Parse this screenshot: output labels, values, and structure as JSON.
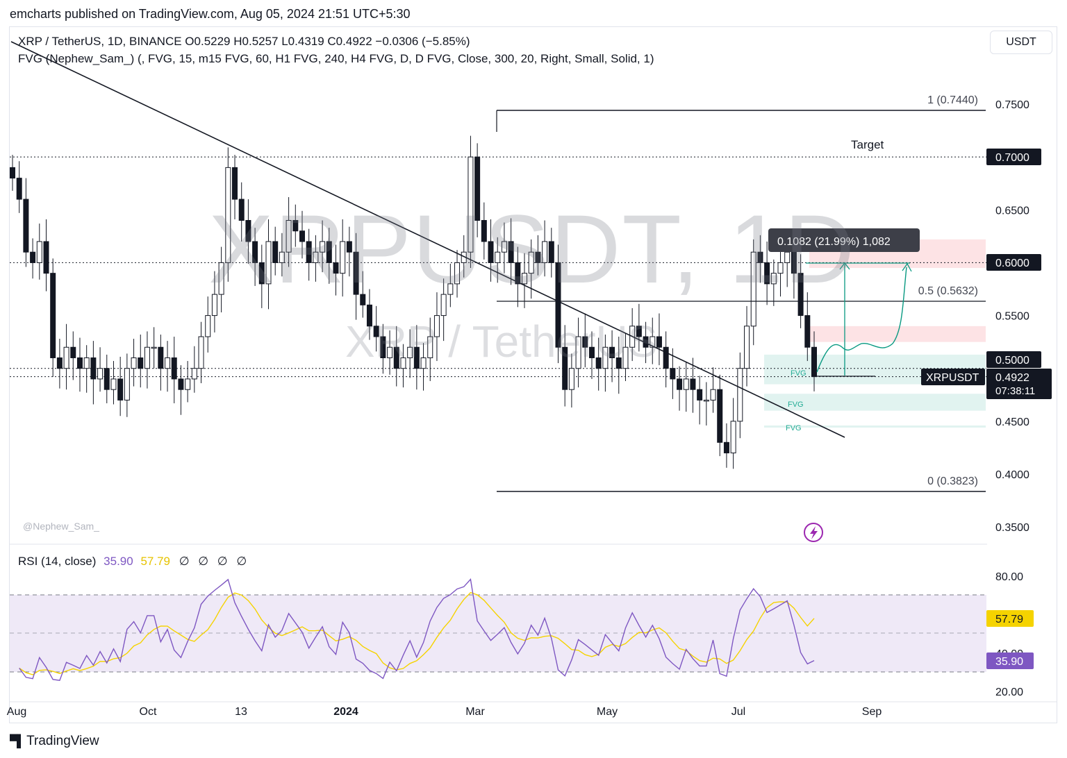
{
  "header": {
    "publisher": "emcharts published on TradingView.com, Aug 05, 2024 21:51 UTC+5:30"
  },
  "legend": {
    "symbol_line": "XRP / TetherUS, 1D, BINANCE  O0.5229  H0.5257  L0.4319  C0.4922  −0.0306 (−5.85%)",
    "indicator_line": "FVG (Nephew_Sam_) (, FVG, 15, m15 FVG, 60, H1 FVG, 240, H4 FVG, D, D FVG, Close, 300, 20, Right, Small, Solid, 1)"
  },
  "currency_button": "USDT",
  "watermark": {
    "symbol": "XRPUSDT, 1D",
    "description": "XRP / TetherUS"
  },
  "credit": "@Nephew_Sam_",
  "rsi": {
    "legend_name": "RSI (14, close)",
    "value_rsi": "35.90",
    "value_ma": "57.79",
    "legend_icons": "∅ ∅ ∅ ∅",
    "ticks": [
      "80.00",
      "40.00",
      "20.00"
    ],
    "rsi_label": "35.90",
    "ma_label": "57.79",
    "colors": {
      "rsi": "#7e57c2",
      "ma": "#f5d300",
      "band": "#ede7f6"
    }
  },
  "footer": {
    "brand": "TradingView",
    "logo_icon": "tradingview-logo-icon"
  },
  "chart_data": {
    "type": "candlestick",
    "symbol": "XRP / TetherUS",
    "timeframe": "1D",
    "exchange": "BINANCE",
    "ohlc_last": {
      "open": 0.5229,
      "high": 0.5257,
      "low": 0.4319,
      "close": 0.4922,
      "change": -0.0306,
      "change_pct": -5.85
    },
    "y_axis": {
      "ticks": [
        "0.7500",
        "0.6500",
        "0.5500",
        "0.4500",
        "0.4000",
        "0.3500"
      ],
      "range": [
        0.34,
        0.78
      ]
    },
    "price_labels": [
      {
        "value": "0.7000",
        "style": "dark"
      },
      {
        "value": "0.6000",
        "style": "dark"
      },
      {
        "value": "0.5000",
        "style": "dark"
      },
      {
        "symbol": "XRPUSDT",
        "value": "0.4922",
        "countdown": "07:38:11",
        "style": "dark"
      }
    ],
    "x_axis": {
      "ticks": [
        "Aug",
        "Oct",
        "13",
        "2024",
        "Mar",
        "May",
        "Jul",
        "Sep"
      ],
      "bold": "2024"
    },
    "fibonacci": [
      {
        "label": "1 (0.7440)",
        "level": 0.744
      },
      {
        "label": "0.5 (0.5632)",
        "level": 0.5632
      },
      {
        "label": "0 (0.3823)",
        "level": 0.3823
      }
    ],
    "annotations": {
      "target": "Target",
      "measure": "0.1082 (21.99%) 1,082",
      "fvg_labels": [
        "FVG",
        "FVG",
        "FVG"
      ]
    },
    "horizontal_levels": [
      0.7,
      0.6,
      0.5,
      0.4922
    ],
    "fvg_zones": [
      {
        "kind": "bearish",
        "from": 0.595,
        "to": 0.622
      },
      {
        "kind": "bearish",
        "from": 0.525,
        "to": 0.54
      },
      {
        "kind": "bullish",
        "from": 0.485,
        "to": 0.513
      },
      {
        "kind": "bullish",
        "from": 0.46,
        "to": 0.476
      },
      {
        "kind": "bullish",
        "from": 0.444,
        "to": 0.446
      }
    ],
    "candles_approx_close": [
      0.68,
      0.66,
      0.61,
      0.6,
      0.62,
      0.59,
      0.51,
      0.5,
      0.52,
      0.51,
      0.5,
      0.51,
      0.49,
      0.5,
      0.48,
      0.49,
      0.47,
      0.5,
      0.51,
      0.5,
      0.52,
      0.52,
      0.5,
      0.51,
      0.49,
      0.48,
      0.49,
      0.5,
      0.53,
      0.55,
      0.57,
      0.6,
      0.69,
      0.66,
      0.64,
      0.62,
      0.6,
      0.58,
      0.62,
      0.6,
      0.61,
      0.64,
      0.63,
      0.62,
      0.6,
      0.61,
      0.62,
      0.6,
      0.59,
      0.62,
      0.61,
      0.57,
      0.56,
      0.54,
      0.53,
      0.51,
      0.52,
      0.5,
      0.51,
      0.52,
      0.5,
      0.51,
      0.53,
      0.55,
      0.57,
      0.58,
      0.6,
      0.61,
      0.7,
      0.64,
      0.62,
      0.6,
      0.61,
      0.62,
      0.6,
      0.58,
      0.59,
      0.61,
      0.6,
      0.62,
      0.6,
      0.52,
      0.48,
      0.5,
      0.53,
      0.52,
      0.51,
      0.5,
      0.52,
      0.51,
      0.5,
      0.52,
      0.54,
      0.53,
      0.52,
      0.53,
      0.52,
      0.5,
      0.49,
      0.48,
      0.49,
      0.48,
      0.47,
      0.47,
      0.48,
      0.43,
      0.42,
      0.45,
      0.5,
      0.54,
      0.61,
      0.6,
      0.58,
      0.59,
      0.6,
      0.61,
      0.59,
      0.55,
      0.52,
      0.4922
    ]
  }
}
